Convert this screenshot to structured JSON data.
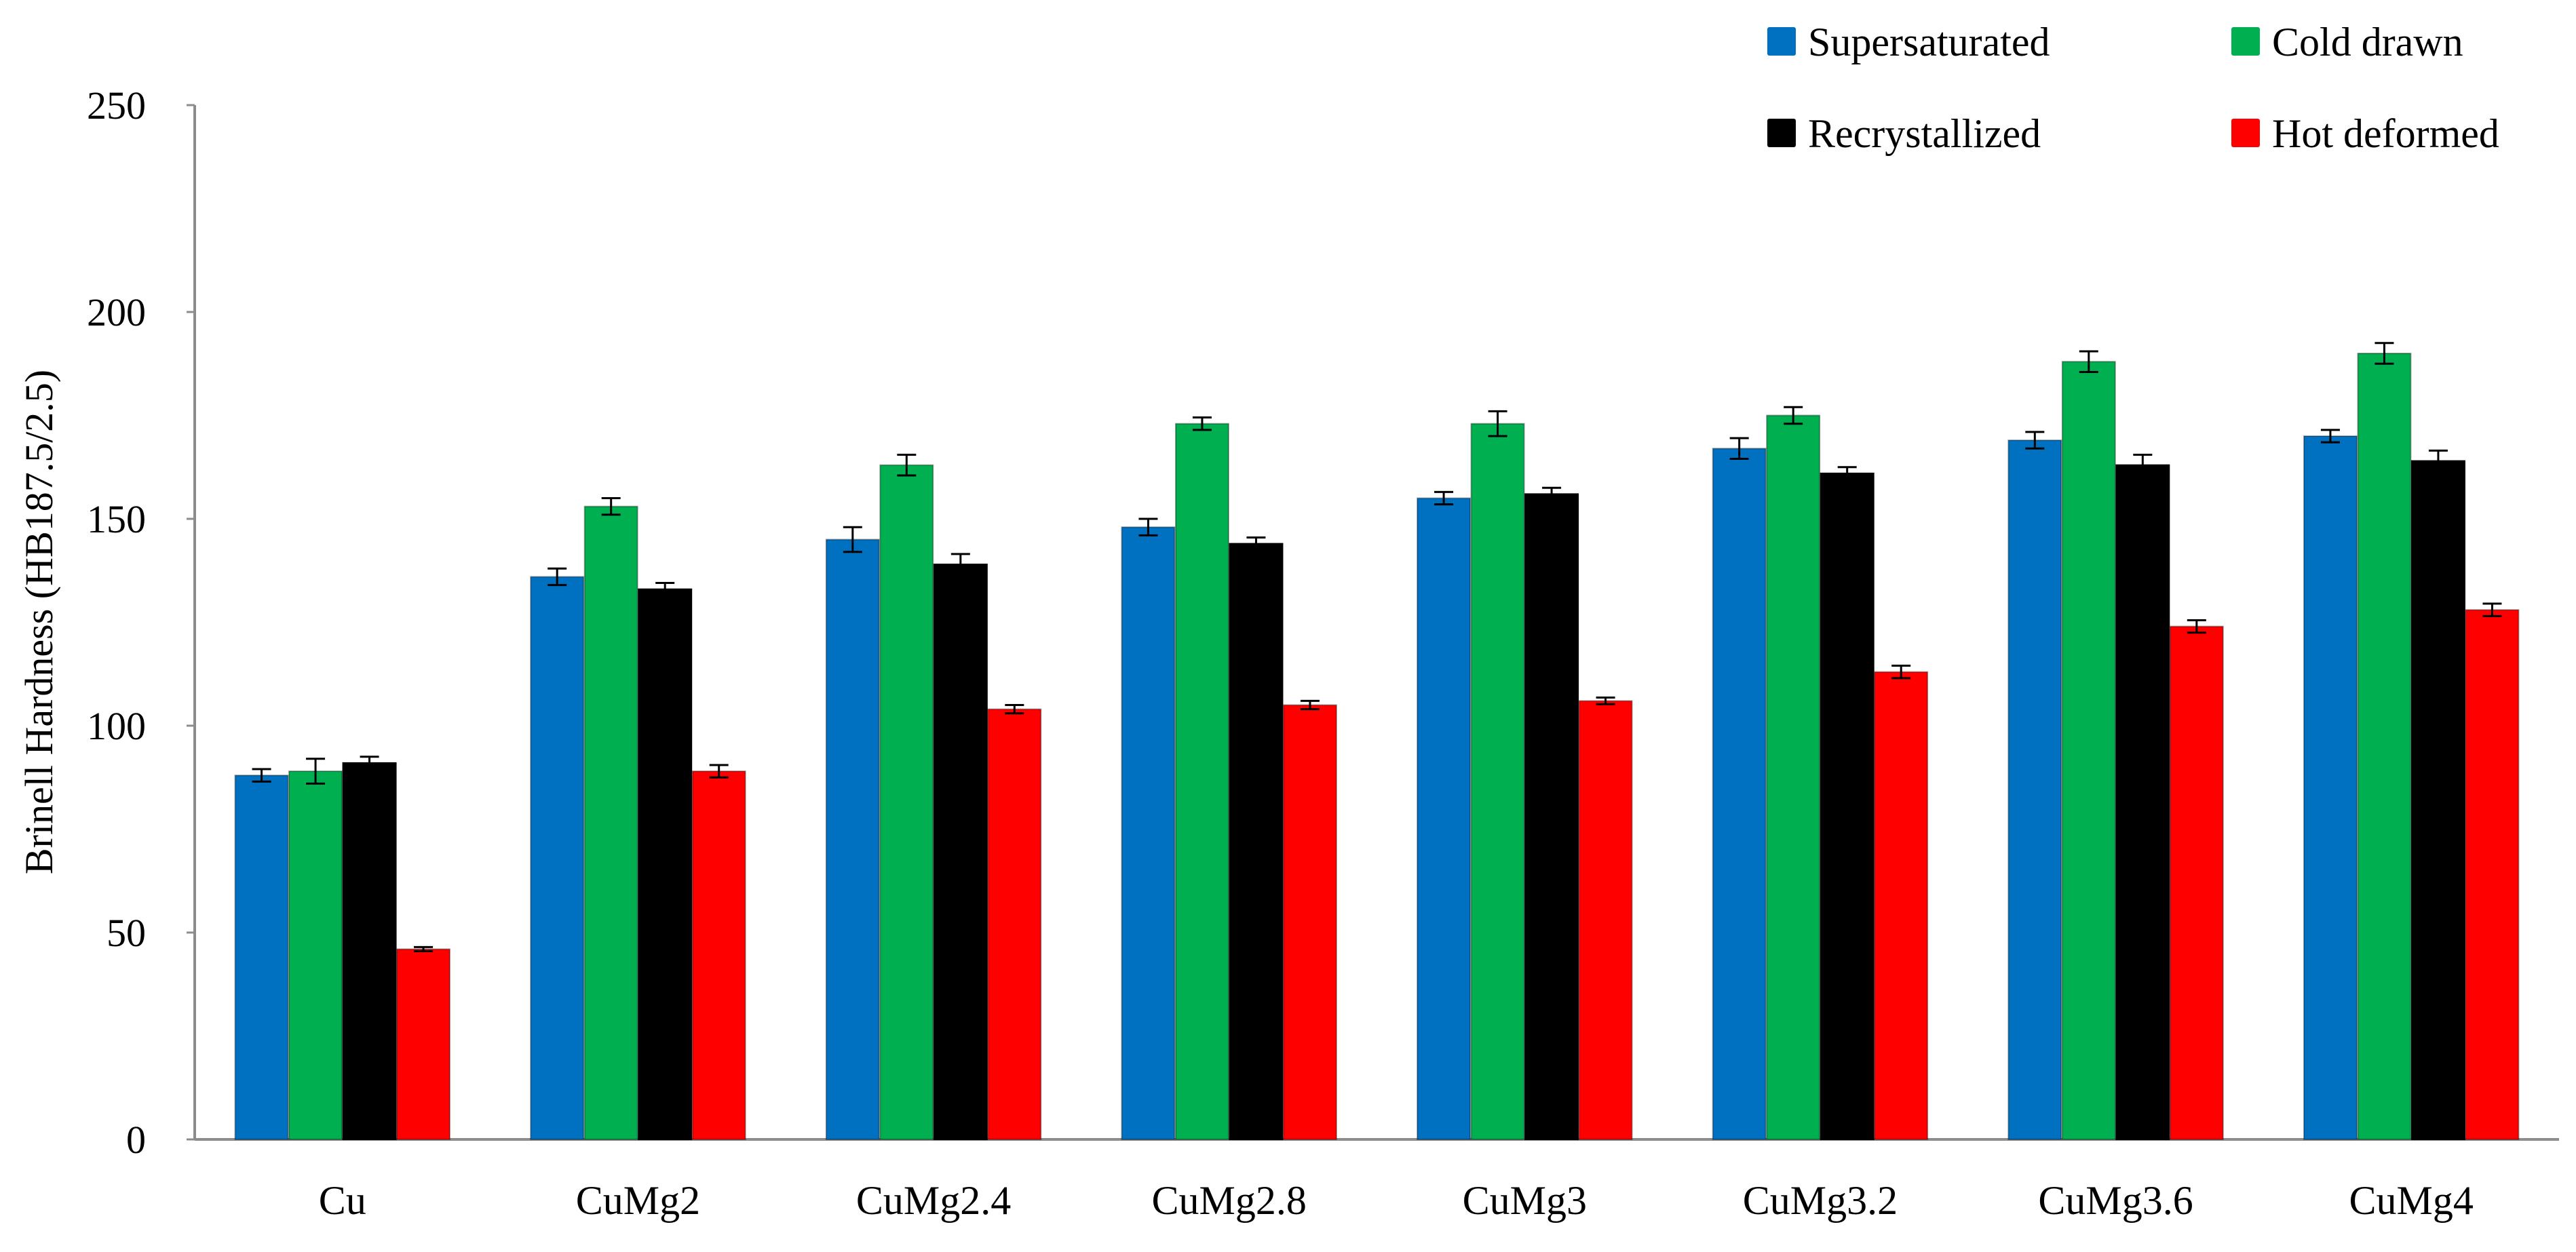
{
  "chart_data": {
    "type": "bar",
    "title": "",
    "xlabel": "",
    "ylabel": "Brinell Hardness (HB187.5/2.5)",
    "ylim": [
      0,
      250
    ],
    "yticks": [
      "0",
      "50",
      "100",
      "150",
      "200",
      "250"
    ],
    "grid": false,
    "legend_position": "top-right",
    "categories": [
      "Cu",
      "CuMg2",
      "CuMg2.4",
      "CuMg2.8",
      "CuMg3",
      "CuMg3.2",
      "CuMg3.6",
      "CuMg4"
    ],
    "series": [
      {
        "name": "Supersaturated",
        "color": "#0070C0",
        "values": [
          88,
          136,
          145,
          148,
          155,
          167,
          169,
          170
        ],
        "errors": [
          1.5,
          2,
          3,
          2,
          1.5,
          2.5,
          2,
          1.5
        ]
      },
      {
        "name": "Cold drawn",
        "color": "#00B050",
        "values": [
          89,
          153,
          163,
          173,
          173,
          175,
          188,
          190
        ],
        "errors": [
          3,
          2,
          2.5,
          1.5,
          3,
          2,
          2.5,
          2.5
        ]
      },
      {
        "name": "Recrystallized",
        "color": "#000000",
        "values": [
          91,
          133,
          139,
          144,
          156,
          161,
          163,
          164
        ],
        "errors": [
          1.5,
          1.5,
          2.5,
          1.5,
          1.5,
          1.5,
          2.5,
          2.5
        ]
      },
      {
        "name": "Hot deformed",
        "color": "#FF0000",
        "values": [
          46,
          89,
          104,
          105,
          106,
          113,
          124,
          128
        ],
        "errors": [
          0.5,
          1.5,
          1,
          1,
          0.8,
          1.5,
          1.5,
          1.5
        ]
      }
    ]
  }
}
